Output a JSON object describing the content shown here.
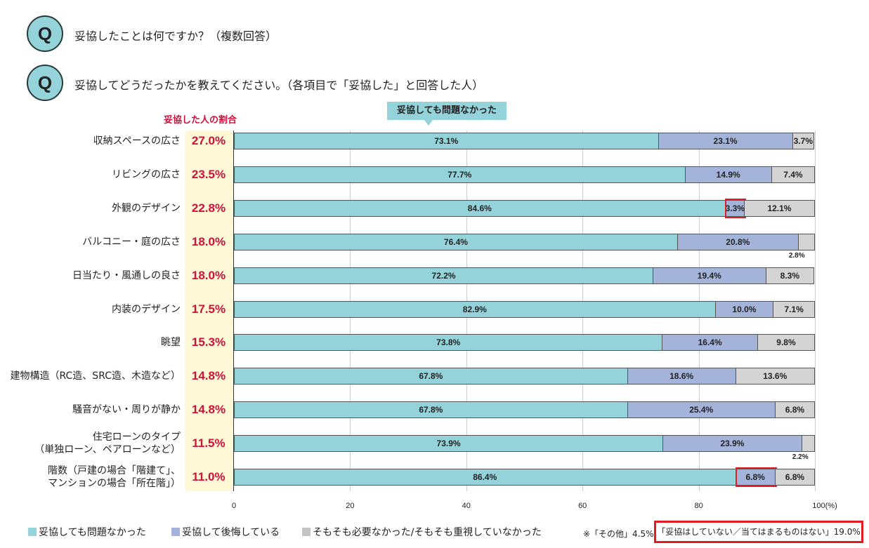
{
  "questions": [
    "妥協したことは何ですか？（複数回答）",
    "妥協してどうだったかを教えてください。（各項目で「妥協した」と回答した人）"
  ],
  "chart_data": {
    "type": "bar",
    "orientation": "horizontal",
    "stacked": true,
    "rate_header": "妥協した人の割合",
    "callout": "妥協しても問題なかった",
    "categories": [
      "収納スペースの広さ",
      "リビングの広さ",
      "外観のデザイン",
      "バルコニー・庭の広さ",
      "日当たり・風通しの良さ",
      "内装のデザイン",
      "眺望",
      "建物構造（RC造、SRC造、木造など）",
      "騒音がない・周りが静か",
      "住宅ローンのタイプ\n（単独ローン、ペアローンなど）",
      "階数（戸建の場合「階建て」、\nマンションの場合「所在階」）"
    ],
    "rates": [
      "27.0%",
      "23.5%",
      "22.8%",
      "18.0%",
      "18.0%",
      "17.5%",
      "15.3%",
      "14.8%",
      "14.8%",
      "11.5%",
      "11.0%"
    ],
    "series": [
      {
        "name": "妥協しても問題なかった",
        "color": "#94d3d9",
        "values": [
          73.1,
          77.7,
          84.6,
          76.4,
          72.2,
          82.9,
          73.8,
          67.8,
          67.8,
          73.9,
          86.4
        ]
      },
      {
        "name": "妥協して後悔している",
        "color": "#a3b3da",
        "values": [
          23.1,
          14.9,
          3.3,
          20.8,
          19.4,
          10.0,
          16.4,
          18.6,
          25.4,
          23.9,
          6.8
        ]
      },
      {
        "name": "そもそも必要なかった/そもそも重視していなかった",
        "color": "#d4d4d4",
        "values": [
          3.7,
          7.4,
          12.1,
          2.8,
          8.3,
          7.1,
          9.8,
          13.6,
          6.8,
          2.2,
          6.8
        ]
      }
    ],
    "highlighted": [
      {
        "category": "外観のデザイン",
        "series": "妥協して後悔している"
      },
      {
        "category": "階数（戸建の場合「階建て」、\nマンションの場合「所在階」）",
        "series": "妥協して後悔している"
      }
    ],
    "xlim": [
      0,
      100
    ],
    "xticks": [
      "0",
      "20",
      "40",
      "60",
      "80",
      "100(%)"
    ],
    "grid": true,
    "legend": "bottom"
  },
  "note": {
    "prefix": "※「その他」4.5%",
    "boxed": "「妥協はしていない／当てはまるものはない」19.0%"
  }
}
